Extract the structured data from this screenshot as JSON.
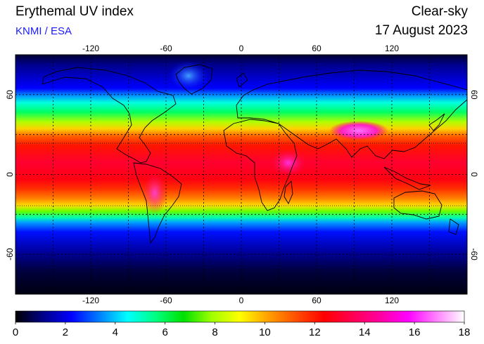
{
  "header": {
    "title": "Erythemal UV index",
    "subtitle": "KNMI / ESA",
    "sky_condition": "Clear-sky",
    "date": "17 August 2023"
  },
  "map": {
    "projection": "equirectangular",
    "lon_range": [
      -180,
      180
    ],
    "lat_range": [
      -90,
      90
    ],
    "lon_ticks": [
      "-120",
      "-60",
      "0",
      "60",
      "120"
    ],
    "lat_ticks": [
      "60",
      "0",
      "-60"
    ],
    "grid": "dotted, 30 degree spacing",
    "tropics_lines": "dotted, +/-23.4 degrees",
    "overlay": "black coastlines"
  },
  "colorbar": {
    "ticks": [
      "0",
      "2",
      "4",
      "6",
      "8",
      "10",
      "12",
      "14",
      "16",
      "18"
    ],
    "range": [
      0,
      18
    ],
    "colors": [
      "#000000",
      "#00008a",
      "#0000ff",
      "#0080ff",
      "#00ffff",
      "#00ff80",
      "#00e000",
      "#a0ff00",
      "#ffff00",
      "#ffa000",
      "#ff5000",
      "#ff0000",
      "#ff0050",
      "#ff00a0",
      "#ff00ff",
      "#ff80ff",
      "#ffffff"
    ]
  }
}
